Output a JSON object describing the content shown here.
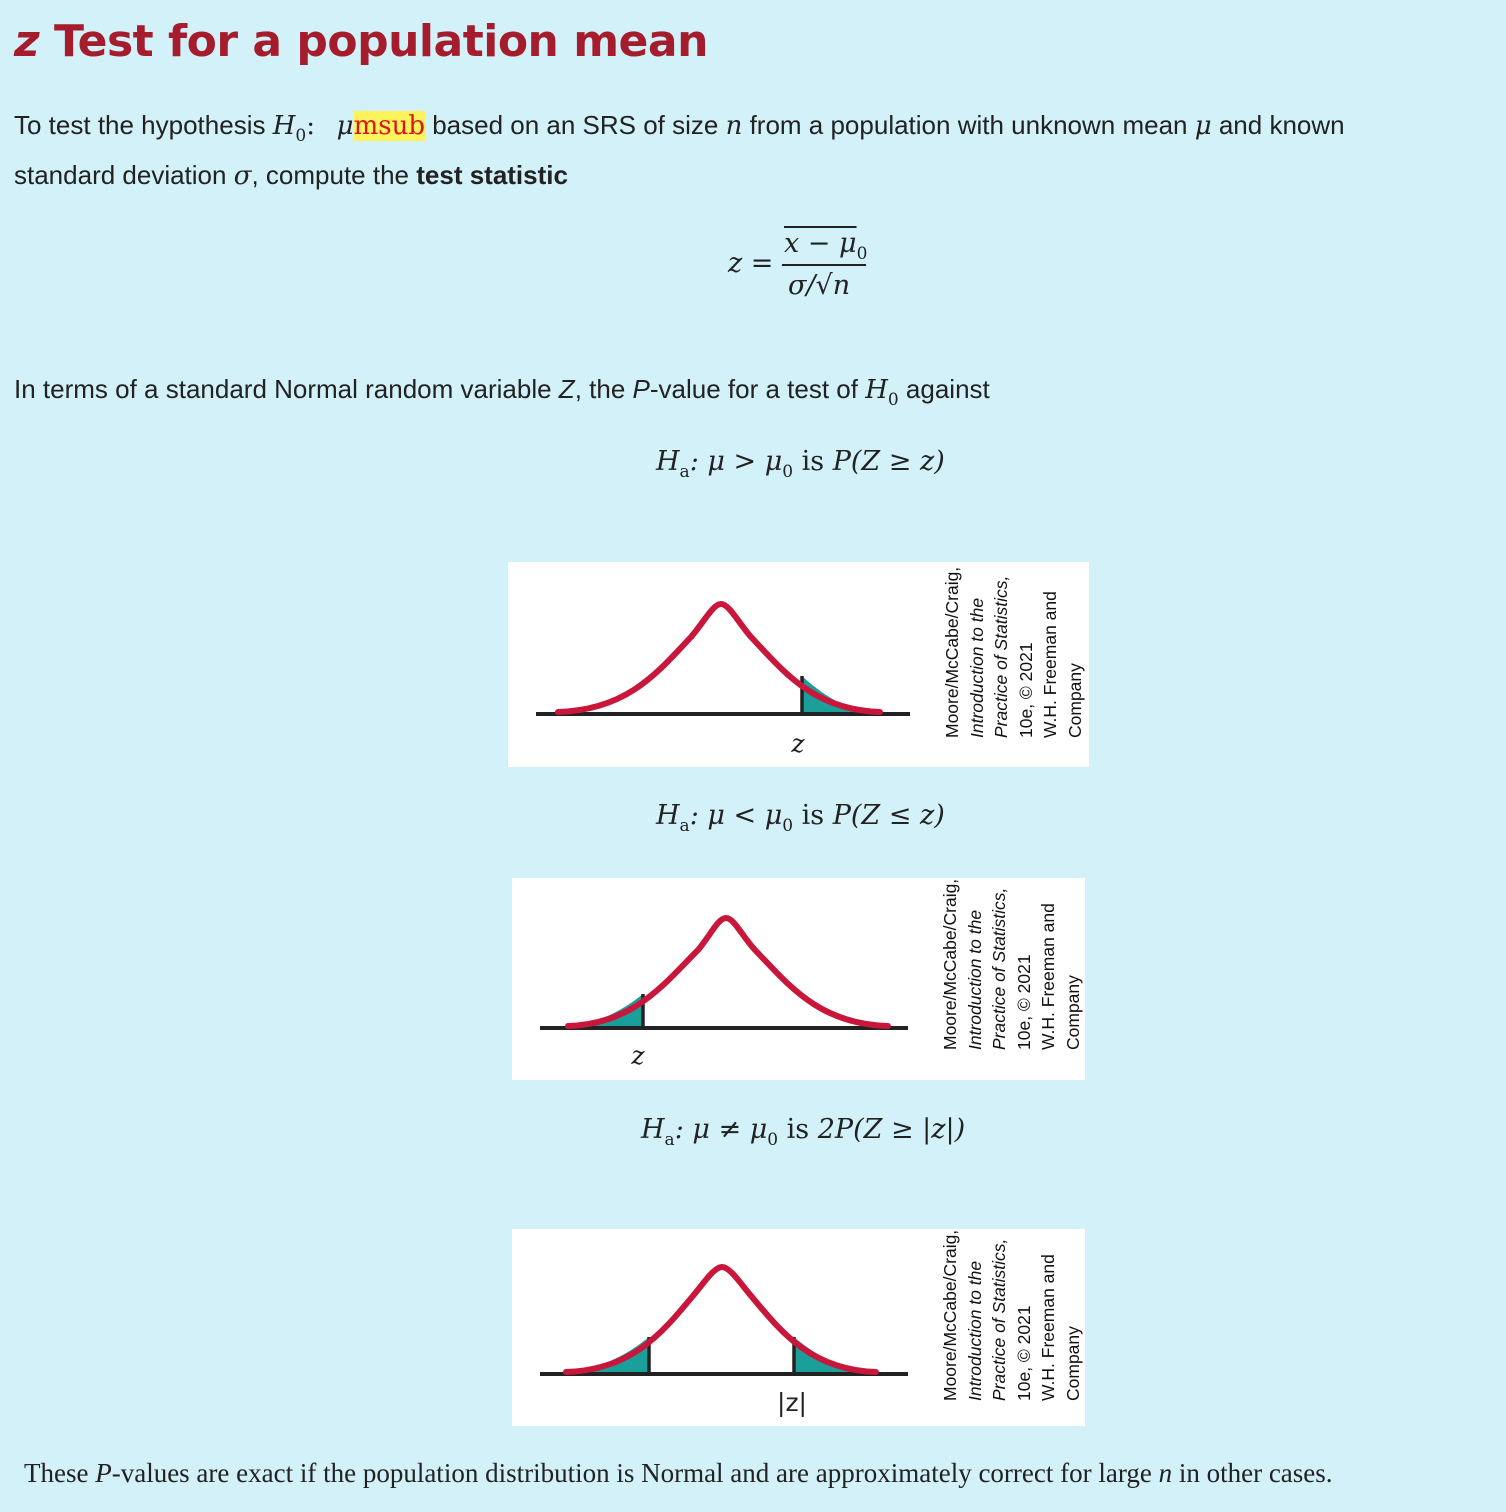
{
  "title": {
    "z": "z",
    "rest": "Test for a population mean"
  },
  "intro": {
    "t1": "To test the hypothesis ",
    "H": "H",
    "sub0": "0",
    "colon": ":",
    "mu": "μ",
    "msub": "msub",
    "t2": " based on an SRS of size ",
    "n": "n",
    "t3": " from a population with unknown mean ",
    "mu2": "μ",
    "t4": " and known",
    "line2a": "standard deviation ",
    "sigma": "σ",
    "line2b": ", compute the ",
    "bold": "test statistic"
  },
  "formula": {
    "lhs": "z =",
    "numerator": "x − μ",
    "num_sub": "0",
    "denominator": "σ/√n"
  },
  "terms": {
    "t1": "In terms of a standard Normal random variable ",
    "Z": "Z",
    "t2": ", the ",
    "P": "P",
    "t3": "-value for a test of ",
    "H": "H",
    "sub0": "0",
    "t4": " against"
  },
  "cases": [
    {
      "H": "H",
      "a": "a",
      "rel": ": μ > μ",
      "sub": "0",
      "is": " is ",
      "prob": "P(Z ≥ z)",
      "axis_label": "z"
    },
    {
      "H": "H",
      "a": "a",
      "rel": ": μ < μ",
      "sub": "0",
      "is": " is ",
      "prob": "P(Z ≤ z)",
      "axis_label": "z"
    },
    {
      "H": "H",
      "a": "a",
      "rel": ": μ ≠ μ",
      "sub": "0",
      "is": " is ",
      "prob": "2P(Z ≥ |z|)",
      "axis_label": "|z|"
    }
  ],
  "credit": {
    "l1": "Moore/McCabe/Craig,",
    "l2": "Introduction to the",
    "l3": "Practice of Statistics,",
    "l4": "10e, © 2021",
    "l5": "W.H. Freeman and",
    "l6": "Company"
  },
  "footer": {
    "t1": "These ",
    "P": "P",
    "t2": "-values are exact if the population distribution is Normal and are approximately correct for large ",
    "n": "n",
    "t3": " in other cases."
  },
  "colors": {
    "title": "#a51c2c",
    "curve": "#c8173a",
    "shade": "#1a9f9b",
    "background": "#d2f1f9",
    "highlight": "#fff35c"
  }
}
